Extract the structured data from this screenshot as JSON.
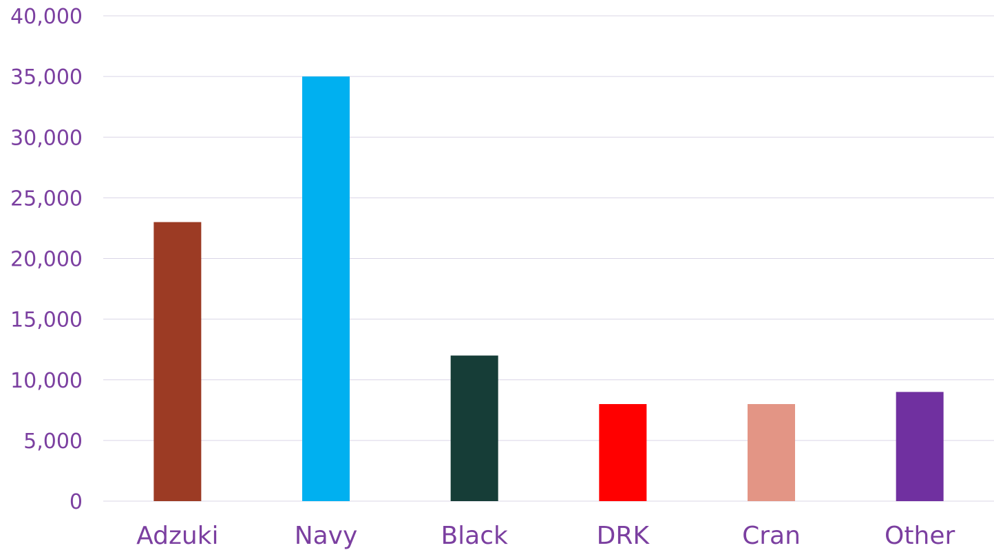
{
  "chart_data": {
    "type": "bar",
    "categories": [
      "Adzuki",
      "Navy",
      "Black",
      "DRK",
      "Cran",
      "Other"
    ],
    "values": [
      23000,
      35000,
      12000,
      8000,
      8000,
      9000
    ],
    "bar_colors": [
      "#9c3b24",
      "#00b0f0",
      "#163d37",
      "#ff0000",
      "#e39585",
      "#7030a0"
    ],
    "ylim": [
      0,
      40000
    ],
    "yticks": [
      0,
      5000,
      10000,
      15000,
      20000,
      25000,
      30000,
      35000,
      40000
    ],
    "ytick_labels": [
      "0",
      "5,000",
      "10,000",
      "15,000",
      "20,000",
      "25,000",
      "30,000",
      "35,000",
      "40,000"
    ],
    "grid": true,
    "legend": false,
    "label_color": "#7b3fa0",
    "grid_color": "#d9d4e6"
  }
}
